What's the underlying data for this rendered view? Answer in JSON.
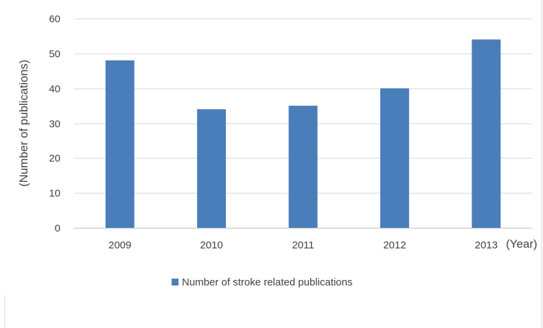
{
  "chart_data": {
    "type": "bar",
    "categories": [
      "2009",
      "2010",
      "2011",
      "2012",
      "2013"
    ],
    "series": [
      {
        "name": "Number of stroke related publications",
        "values": [
          48,
          34,
          35,
          40,
          54
        ],
        "color": "#4a7ebb"
      }
    ],
    "title": "",
    "xlabel": "(Year)",
    "ylabel": "(Number of publications)",
    "ylim": [
      0,
      60
    ],
    "yticks": [
      0,
      10,
      20,
      30,
      40,
      50,
      60
    ],
    "grid": true,
    "legend_position": "bottom",
    "gridline_color": "#d9d9d9",
    "axis_color": "#bfbfbf",
    "frame_color": "#d9d9d9"
  }
}
